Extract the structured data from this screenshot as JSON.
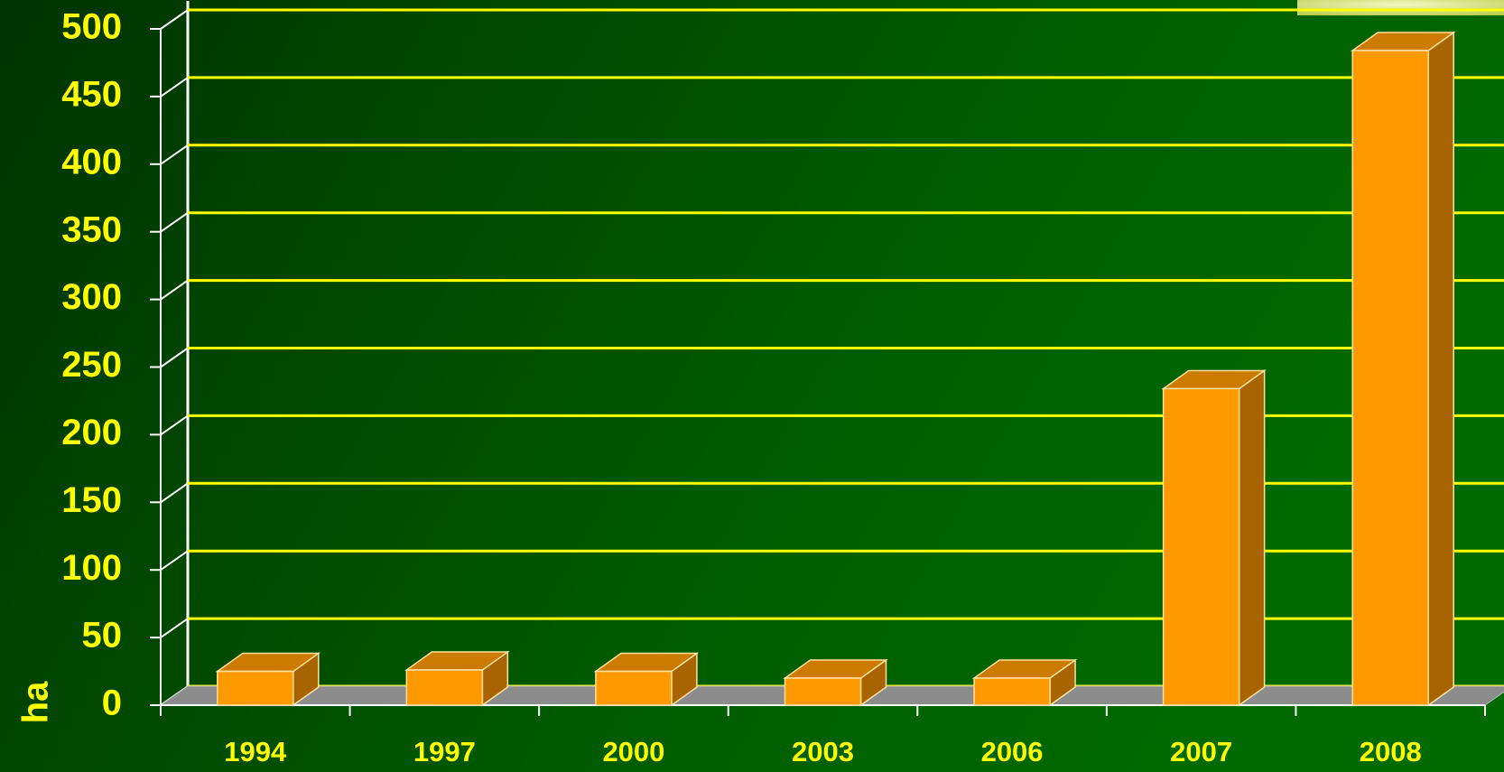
{
  "chart_data": {
    "type": "bar3d",
    "y_label": "ha",
    "categories": [
      "1994",
      "1997",
      "2000",
      "2003",
      "2006",
      "2007",
      "2008"
    ],
    "values": [
      25,
      26,
      25,
      20,
      20,
      234,
      484
    ],
    "color": "#ff9900",
    "ylim": [
      0,
      500
    ],
    "yticks": [
      0,
      50,
      100,
      150,
      200,
      250,
      300,
      350,
      400,
      450,
      500
    ],
    "grid": true
  }
}
